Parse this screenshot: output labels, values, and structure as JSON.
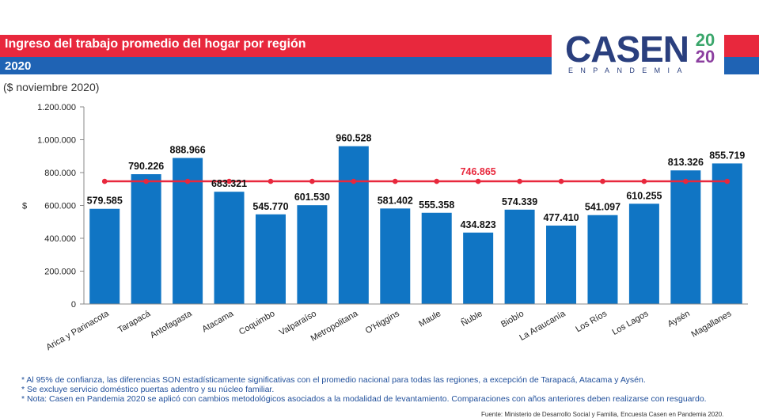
{
  "header": {
    "title": "Ingreso del trabajo promedio del hogar por región",
    "year": "2020",
    "unit_note": "($ noviembre 2020)"
  },
  "logo": {
    "main": "CASEN",
    "year_top": "20",
    "year_bottom": "20",
    "subtitle": "ENPANDEMIA"
  },
  "colors": {
    "bar": "#1075c4",
    "average_line": "#e8283d",
    "red_band": "#e8283d",
    "blue_band": "#1f63b4"
  },
  "chart_data": {
    "type": "bar",
    "ylabel": "$",
    "ylim": [
      0,
      1200000
    ],
    "yticks": [
      0,
      200000,
      400000,
      600000,
      800000,
      1000000,
      1200000
    ],
    "ytick_labels": [
      "0",
      "200.000",
      "400.000",
      "600.000",
      "800.000",
      "1.000.000",
      "1.200.000"
    ],
    "categories": [
      "Arica y Parinacota",
      "Tarapacá",
      "Antofagasta",
      "Atacama",
      "Coquimbo",
      "Valparaíso",
      "Metropolitana",
      "O'Higgins",
      "Maule",
      "Ñuble",
      "Biobío",
      "La Araucanía",
      "Los Ríos",
      "Los Lagos",
      "Aysén",
      "Magallanes"
    ],
    "values": [
      579585,
      790226,
      888966,
      683321,
      545770,
      601530,
      960528,
      581402,
      555358,
      434823,
      574339,
      477410,
      541097,
      610255,
      813326,
      855719
    ],
    "value_labels": [
      "579.585",
      "790.226",
      "888.966",
      "683.321",
      "545.770",
      "601.530",
      "960.528",
      "581.402",
      "555.358",
      "434.823",
      "574.339",
      "477.410",
      "541.097",
      "610.255",
      "813.326",
      "855.719"
    ],
    "average": 746865,
    "average_label": "746.865"
  },
  "footnotes": [
    "* Al 95% de confianza, las diferencias SON estadísticamente significativas con el promedio nacional para todas las regiones, a excepción de Tarapacá, Atacama y Aysén.",
    "* Se excluye servicio doméstico puertas adentro y su núcleo familiar.",
    "* Nota: Casen en Pandemia 2020 se aplicó con cambios metodológicos asociados a la modalidad de levantamiento. Comparaciones con años anteriores deben realizarse con resguardo."
  ],
  "source": "Fuente: Ministerio de Desarrollo Social y Familia, Encuesta Casen en Pandemia 2020."
}
